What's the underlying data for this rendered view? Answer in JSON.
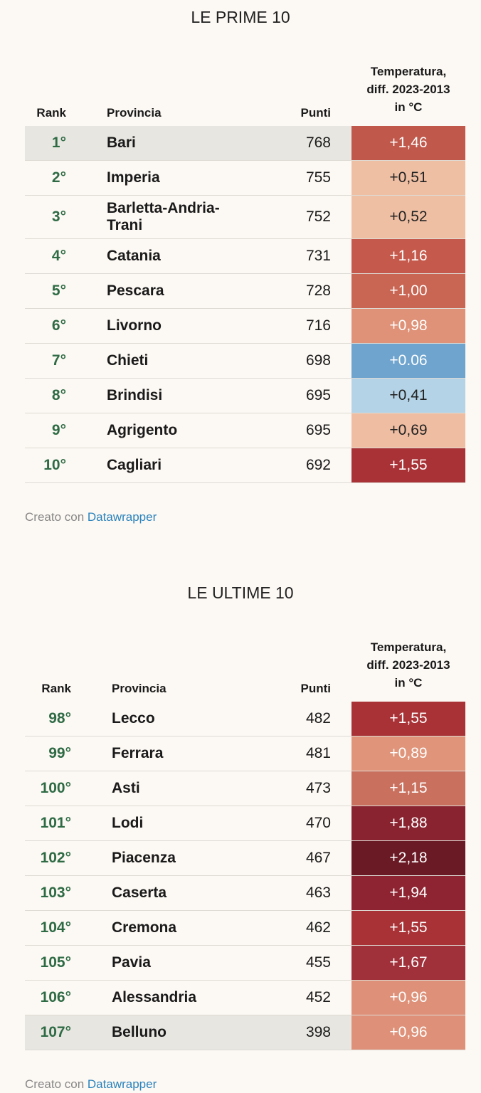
{
  "tables": [
    {
      "title": "LE PRIME 10",
      "headers": [
        "Rank",
        "Provincia",
        "Punti",
        "Temperatura, diff. 2023-2013 in °C"
      ],
      "rows": [
        {
          "rank": "1°",
          "provincia": "Bari",
          "punti": 768,
          "temp": "+1,46",
          "color": "#c0584b",
          "text_color": "#ffffff",
          "highlight": true
        },
        {
          "rank": "2°",
          "provincia": "Imperia",
          "punti": 755,
          "temp": "+0,51",
          "color": "#efbfa4",
          "text_color": "#222222"
        },
        {
          "rank": "3°",
          "provincia": "Barletta-Andria-Trani",
          "punti": 752,
          "temp": "+0,52",
          "color": "#efbfa4",
          "text_color": "#222222"
        },
        {
          "rank": "4°",
          "provincia": "Catania",
          "punti": 731,
          "temp": "+1,16",
          "color": "#c55a4c",
          "text_color": "#ffffff"
        },
        {
          "rank": "5°",
          "provincia": "Pescara",
          "punti": 728,
          "temp": "+1,00",
          "color": "#c96553",
          "text_color": "#ffffff"
        },
        {
          "rank": "6°",
          "provincia": "Livorno",
          "punti": 716,
          "temp": "+0,98",
          "color": "#df9278",
          "text_color": "#ffffff"
        },
        {
          "rank": "7°",
          "provincia": "Chieti",
          "punti": 698,
          "temp": "+0.06",
          "color": "#6fa4cf",
          "text_color": "#ffffff"
        },
        {
          "rank": "8°",
          "provincia": "Brindisi",
          "punti": 695,
          "temp": "+0,41",
          "color": "#b5d3e6",
          "text_color": "#222222"
        },
        {
          "rank": "9°",
          "provincia": "Agrigento",
          "punti": 695,
          "temp": "+0,69",
          "color": "#efbda2",
          "text_color": "#222222"
        },
        {
          "rank": "10°",
          "provincia": "Cagliari",
          "punti": 692,
          "temp": "+1,55",
          "color": "#a83236",
          "text_color": "#ffffff"
        }
      ],
      "footer": {
        "text": "Creato con",
        "link": "Datawrapper"
      }
    },
    {
      "title": "LE ULTIME 10",
      "headers": [
        "Rank",
        "Provincia",
        "Punti",
        "Temperatura, diff. 2023-2013 in °C"
      ],
      "rows": [
        {
          "rank": "98°",
          "provincia": "Lecco",
          "punti": 482,
          "temp": "+1,55",
          "color": "#a83236",
          "text_color": "#ffffff"
        },
        {
          "rank": "99°",
          "provincia": "Ferrara",
          "punti": 481,
          "temp": "+0,89",
          "color": "#e0957b",
          "text_color": "#ffffff"
        },
        {
          "rank": "100°",
          "provincia": "Asti",
          "punti": 473,
          "temp": "+1,15",
          "color": "#c9705e",
          "text_color": "#ffffff"
        },
        {
          "rank": "101°",
          "provincia": "Lodi",
          "punti": 470,
          "temp": "+1,88",
          "color": "#8a2330",
          "text_color": "#ffffff"
        },
        {
          "rank": "102°",
          "provincia": "Piacenza",
          "punti": 467,
          "temp": "+2,18",
          "color": "#6a1a25",
          "text_color": "#ffffff"
        },
        {
          "rank": "103°",
          "provincia": "Caserta",
          "punti": 463,
          "temp": "+1,94",
          "color": "#8e2431",
          "text_color": "#ffffff"
        },
        {
          "rank": "104°",
          "provincia": "Cremona",
          "punti": 462,
          "temp": "+1,55",
          "color": "#a83236",
          "text_color": "#ffffff"
        },
        {
          "rank": "105°",
          "provincia": "Pavia",
          "punti": 455,
          "temp": "+1,67",
          "color": "#a0303a",
          "text_color": "#ffffff"
        },
        {
          "rank": "106°",
          "provincia": "Alessandria",
          "punti": 452,
          "temp": "+0,96",
          "color": "#de9178",
          "text_color": "#ffffff"
        },
        {
          "rank": "107°",
          "provincia": "Belluno",
          "punti": 398,
          "temp": "+0,96",
          "color": "#de9178",
          "text_color": "#ffffff",
          "highlight": true
        }
      ],
      "footer": {
        "text": "Creato con",
        "link": "Datawrapper"
      }
    }
  ]
}
